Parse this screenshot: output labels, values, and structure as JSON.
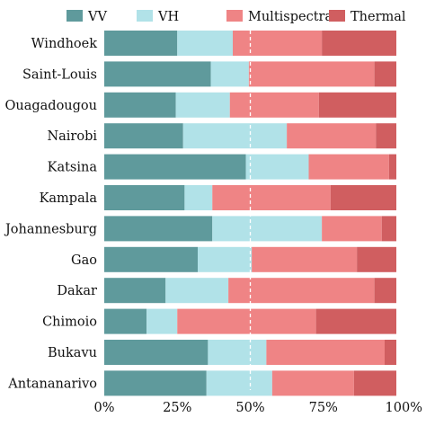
{
  "chart_data": {
    "type": "bar",
    "orientation": "horizontal",
    "stacked": true,
    "categories": [
      "Windhoek",
      "Saint-Louis",
      "Ouagadougou",
      "Nairobi",
      "Katsina",
      "Kampala",
      "Johannesburg",
      "Gao",
      "Dakar",
      "Chimoio",
      "Bukavu",
      "Antananarivo"
    ],
    "series": [
      {
        "name": "VV",
        "color": "#5f9a9c",
        "values": [
          25,
          36.5,
          24.5,
          27,
          48.5,
          27.5,
          37,
          32,
          21,
          14.5,
          35.5,
          35
        ]
      },
      {
        "name": "VH",
        "color": "#b1e2e8",
        "values": [
          19,
          13,
          18.5,
          35.5,
          21.5,
          9.5,
          37.5,
          18.5,
          21.5,
          10.5,
          20,
          22.5
        ]
      },
      {
        "name": "Multispectral",
        "color": "#ef8485",
        "values": [
          30.5,
          43,
          30.5,
          30.5,
          27.5,
          40.5,
          20.5,
          36,
          50,
          47.5,
          40.5,
          28
        ]
      },
      {
        "name": "Thermal",
        "color": "#d05e60",
        "values": [
          25.5,
          7.5,
          26.5,
          7,
          2.5,
          22.5,
          5,
          13.5,
          7.5,
          27.5,
          4,
          14.5
        ]
      }
    ],
    "x_ticks": [
      "0%",
      "25%",
      "50%",
      "75%",
      "100%"
    ],
    "xlim": [
      0,
      100
    ],
    "reference_line": {
      "x": 50,
      "style": "dashed",
      "color": "#ffffff"
    },
    "legend_position": "top",
    "grid": false
  }
}
